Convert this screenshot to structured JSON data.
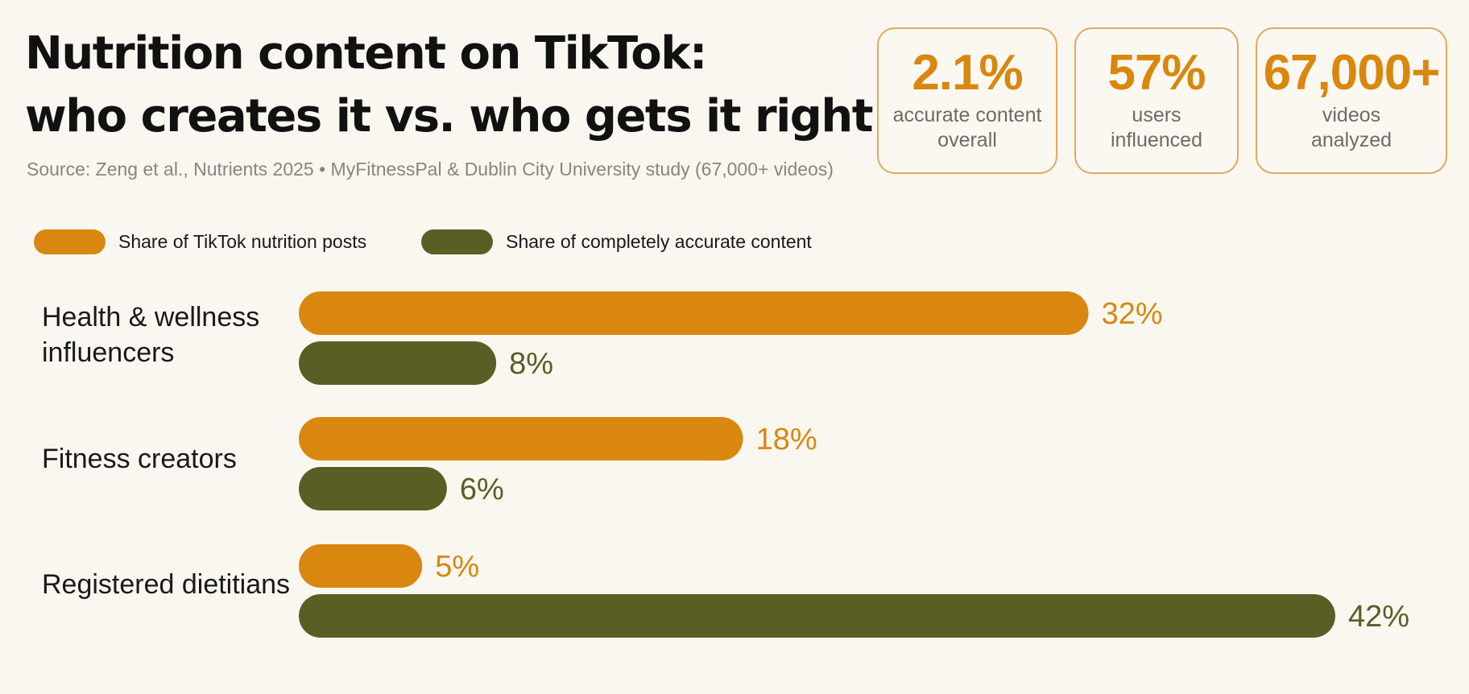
{
  "header": {
    "title_line1": "Nutrition content on TikTok:",
    "title_line2": "who creates it vs. who gets it right",
    "source": "Source: Zeng et al., Nutrients 2025 • MyFitnessPal & Dublin City University study (67,000+ videos)"
  },
  "stats": [
    {
      "value": "2.1%",
      "label_line1": "accurate content",
      "label_line2": "overall"
    },
    {
      "value": "57%",
      "label_line1": "users",
      "label_line2": "influenced"
    },
    {
      "value": "67,000+",
      "label_line1": "videos",
      "label_line2": "analyzed"
    }
  ],
  "colors": {
    "posts": "#d9870e",
    "accurate": "#5a5e24",
    "background": "#faf7f1",
    "card_border": "#e3a860"
  },
  "chart_data": {
    "type": "bar",
    "orientation": "horizontal",
    "categories": [
      [
        "Health & wellness",
        "influencers"
      ],
      [
        "Fitness creators"
      ],
      [
        "Registered dietitians"
      ]
    ],
    "series": [
      {
        "name": "Share of TikTok nutrition posts",
        "values": [
          32,
          18,
          5
        ],
        "labels": [
          "32%",
          "18%",
          "5%"
        ]
      },
      {
        "name": "Share of completely accurate content",
        "values": [
          8,
          6,
          42
        ],
        "labels": [
          "8%",
          "6%",
          "42%"
        ]
      }
    ],
    "unit": "%",
    "xlim": [
      0,
      42
    ],
    "grid": false,
    "legend": "top-left"
  }
}
